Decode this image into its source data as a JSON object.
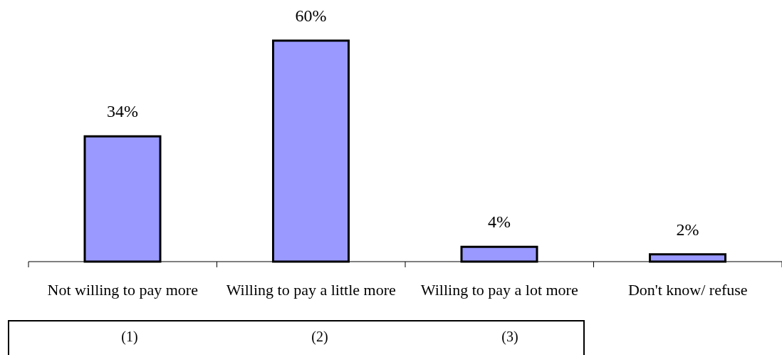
{
  "chart_data": {
    "type": "bar",
    "categories": [
      "Not willing to pay more",
      "Willing to pay a little more",
      "Willing to pay a lot more",
      "Don't know/ refuse"
    ],
    "values": [
      34,
      60,
      4,
      2
    ],
    "color": "#9999ff",
    "value_labels": [
      "34%",
      "60%",
      "4%",
      "2%"
    ],
    "annotations": [
      "(1)",
      "(2)",
      "(3)"
    ]
  }
}
